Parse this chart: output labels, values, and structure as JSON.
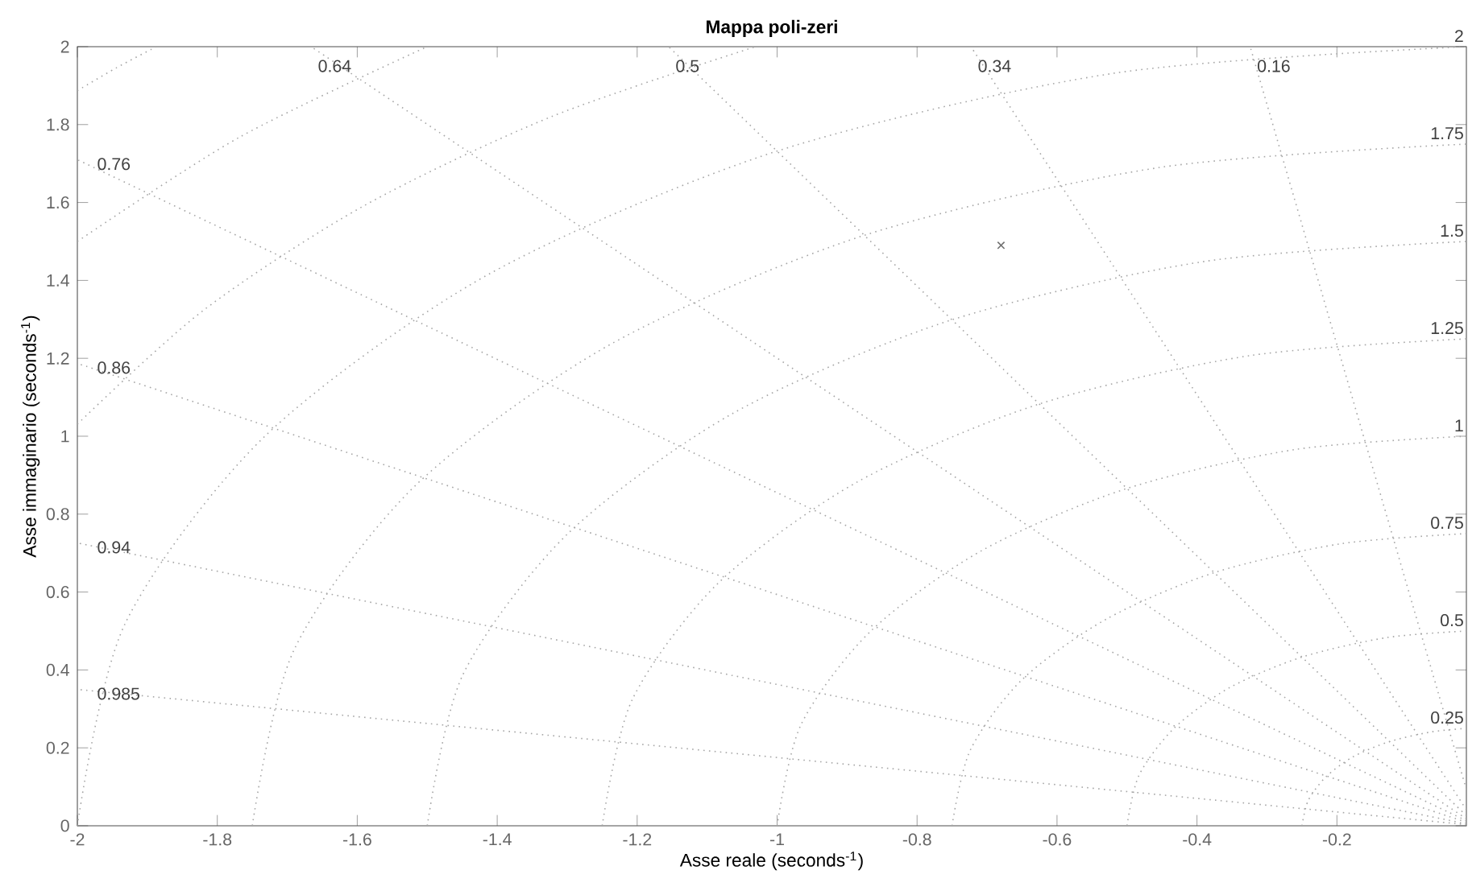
{
  "chart_data": {
    "type": "line",
    "title": "Mappa poli-zeri",
    "xlabel": "Asse reale (seconds$^{-1}$)",
    "ylabel": "Asse immaginario (seconds$^{-1}$)",
    "xlim": [
      -2,
      -0.015
    ],
    "ylim": [
      0,
      2
    ],
    "xticks": [
      -2,
      -1.8,
      -1.6,
      -1.4,
      -1.2,
      -1,
      -0.8,
      -0.6,
      -0.4,
      -0.2
    ],
    "yticks": [
      0,
      0.2,
      0.4,
      0.6,
      0.8,
      1,
      1.2,
      1.4,
      1.6,
      1.8,
      2
    ],
    "series": [
      {
        "color": "#a6a6a6",
        "line_style": "dotted",
        "marker": "none",
        "x": [
          -0.015,
          -2
        ],
        "values": [
          0.003,
          0.35
        ]
      },
      {
        "color": "#a6a6a6",
        "line_style": "dotted",
        "marker": "none",
        "x": [
          -0.015,
          -2
        ],
        "values": [
          0.005,
          0.726
        ]
      },
      {
        "color": "#a6a6a6",
        "line_style": "dotted",
        "marker": "none",
        "x": [
          -0.015,
          -2
        ],
        "values": [
          0.009,
          1.187
        ]
      },
      {
        "color": "#a6a6a6",
        "line_style": "dotted",
        "marker": "none",
        "x": [
          -0.015,
          -2
        ],
        "values": [
          0.013,
          1.71
        ]
      },
      {
        "color": "#a6a6a6",
        "line_style": "dotted",
        "marker": "none",
        "x": [
          -0.015,
          -1.666
        ],
        "values": [
          0.018,
          2
        ]
      },
      {
        "color": "#a6a6a6",
        "line_style": "dotted",
        "marker": "none",
        "x": [
          -0.015,
          -1.155
        ],
        "values": [
          0.026,
          2
        ]
      },
      {
        "color": "#a6a6a6",
        "line_style": "dotted",
        "marker": "none",
        "x": [
          -0.015,
          -0.723
        ],
        "values": [
          0.041,
          2
        ]
      },
      {
        "color": "#a6a6a6",
        "line_style": "dotted",
        "marker": "none",
        "x": [
          -0.015,
          -0.324
        ],
        "values": [
          0.093,
          2
        ]
      },
      {
        "color": "#a6a6a6",
        "line_style": "dotted",
        "marker": "none",
        "x": [
          -0.25,
          -0.241,
          -0.216,
          -0.177,
          -0.125,
          -0.065,
          -0.015
        ],
        "values": [
          0,
          0.065,
          0.125,
          0.177,
          0.216,
          0.241,
          0.25
        ]
      },
      {
        "color": "#a6a6a6",
        "line_style": "dotted",
        "marker": "none",
        "x": [
          -0.5,
          -0.483,
          -0.433,
          -0.354,
          -0.25,
          -0.129,
          -0.015
        ],
        "values": [
          0,
          0.129,
          0.25,
          0.354,
          0.433,
          0.483,
          0.5
        ]
      },
      {
        "color": "#a6a6a6",
        "line_style": "dotted",
        "marker": "none",
        "x": [
          -0.75,
          -0.724,
          -0.65,
          -0.53,
          -0.375,
          -0.194,
          -0.015
        ],
        "values": [
          0,
          0.194,
          0.375,
          0.53,
          0.65,
          0.724,
          0.75
        ]
      },
      {
        "color": "#a6a6a6",
        "line_style": "dotted",
        "marker": "none",
        "x": [
          -1,
          -0.966,
          -0.866,
          -0.707,
          -0.5,
          -0.259,
          -0.015
        ],
        "values": [
          0,
          0.259,
          0.5,
          0.707,
          0.866,
          0.966,
          1
        ]
      },
      {
        "color": "#a6a6a6",
        "line_style": "dotted",
        "marker": "none",
        "x": [
          -1.25,
          -1.207,
          -1.083,
          -0.884,
          -0.625,
          -0.324,
          -0.015
        ],
        "values": [
          0,
          0.324,
          0.625,
          0.884,
          1.083,
          1.207,
          1.25
        ]
      },
      {
        "color": "#a6a6a6",
        "line_style": "dotted",
        "marker": "none",
        "x": [
          -1.5,
          -1.449,
          -1.299,
          -1.061,
          -0.75,
          -0.388,
          -0.015
        ],
        "values": [
          0,
          0.388,
          0.75,
          1.061,
          1.299,
          1.449,
          1.5
        ]
      },
      {
        "color": "#a6a6a6",
        "line_style": "dotted",
        "marker": "none",
        "x": [
          -1.75,
          -1.69,
          -1.516,
          -1.237,
          -0.875,
          -0.453,
          -0.015
        ],
        "values": [
          0,
          0.453,
          0.875,
          1.237,
          1.516,
          1.69,
          1.75
        ]
      },
      {
        "color": "#a6a6a6",
        "line_style": "dotted",
        "marker": "none",
        "x": [
          -2,
          -1.932,
          -1.732,
          -1.414,
          -1,
          -0.518,
          -0.015
        ],
        "values": [
          0,
          0.518,
          1,
          1.414,
          1.732,
          1.932,
          2
        ]
      },
      {
        "color": "#a6a6a6",
        "line_style": "dotted",
        "marker": "none",
        "x": [
          -2,
          -1.82,
          -1.591,
          -1.323,
          -1.031
        ],
        "values": [
          1.031,
          1.323,
          1.591,
          1.82,
          2
        ]
      },
      {
        "color": "#a6a6a6",
        "line_style": "dotted",
        "marker": "none",
        "x": [
          -2,
          -1.768,
          -1.5
        ],
        "values": [
          1.5,
          1.768,
          2
        ]
      },
      {
        "color": "#a6a6a6",
        "line_style": "dotted",
        "marker": "none",
        "x": [
          -2,
          -1.945,
          -1.887
        ],
        "values": [
          1.887,
          1.945,
          2
        ]
      },
      {
        "type": "scatter",
        "color": "#707070",
        "marker": "cross",
        "x": [
          -0.68
        ],
        "values": [
          1.49
        ]
      }
    ],
    "annotations": [
      {
        "text": "0.64",
        "x": -1.666,
        "y": 2
      },
      {
        "text": "0.5",
        "x": -1.155,
        "y": 2
      },
      {
        "text": "0.34",
        "x": -0.723,
        "y": 2
      },
      {
        "text": "0.16",
        "x": -0.324,
        "y": 2
      },
      {
        "text": "0.76",
        "x": -2,
        "y": 1.71
      },
      {
        "text": "0.86",
        "x": -2,
        "y": 1.187
      },
      {
        "text": "0.94",
        "x": -2,
        "y": 0.726
      },
      {
        "text": "0.985",
        "x": -2,
        "y": 0.35
      },
      {
        "text": "2",
        "x": -0.015,
        "y": 2
      },
      {
        "text": "1.75",
        "x": -0.015,
        "y": 1.75
      },
      {
        "text": "1.5",
        "x": -0.015,
        "y": 1.5
      },
      {
        "text": "1.25",
        "x": -0.015,
        "y": 1.25
      },
      {
        "text": "1",
        "x": -0.015,
        "y": 1
      },
      {
        "text": "0.75",
        "x": -0.015,
        "y": 0.75
      },
      {
        "text": "0.5",
        "x": -0.015,
        "y": 0.5
      },
      {
        "text": "0.25",
        "x": -0.015,
        "y": 0.25
      }
    ]
  }
}
